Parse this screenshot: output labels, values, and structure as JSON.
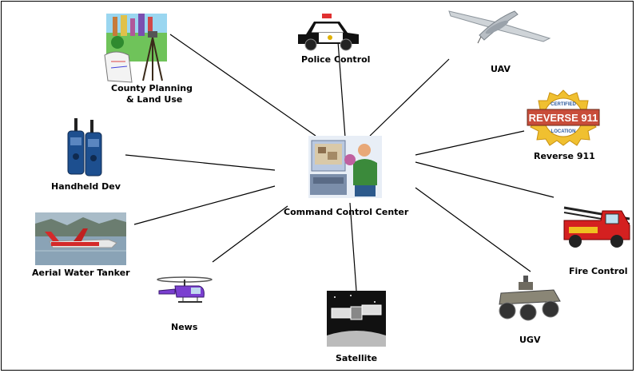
{
  "diagram": {
    "hub": {
      "label": "Command Control Center",
      "icon": "command-center-icon"
    },
    "nodes": [
      {
        "id": "county-planning",
        "label_line1": "County Planning",
        "label_line2": "& Land Use",
        "icon": "surveyor-icon"
      },
      {
        "id": "police-control",
        "label": "Police Control",
        "icon": "police-car-icon"
      },
      {
        "id": "uav",
        "label": "UAV",
        "icon": "drone-icon"
      },
      {
        "id": "reverse-911",
        "label": "Reverse 911",
        "badge_text": "REVERSE 911",
        "badge_top_text": "CERTIFIED",
        "badge_bottom_text": "LOCATION",
        "icon": "reverse-911-badge-icon"
      },
      {
        "id": "handheld-dev",
        "label": "Handheld Dev",
        "icon": "walkie-talkie-icon"
      },
      {
        "id": "fire-control",
        "label": "Fire Control",
        "icon": "fire-truck-icon"
      },
      {
        "id": "aerial-water-tanker",
        "label": "Aerial Water Tanker",
        "icon": "water-tanker-plane-icon"
      },
      {
        "id": "news",
        "label": "News",
        "icon": "helicopter-icon"
      },
      {
        "id": "satellite",
        "label": "Satellite",
        "icon": "satellite-icon"
      },
      {
        "id": "ugv",
        "label": "UGV",
        "icon": "ground-robot-icon"
      }
    ],
    "connections": [
      "county-planning",
      "police-control",
      "uav",
      "reverse-911",
      "handheld-dev",
      "fire-control",
      "aerial-water-tanker",
      "news",
      "satellite",
      "ugv"
    ],
    "colors": {
      "line": "#000000",
      "border": "#000000",
      "background": "#ffffff"
    }
  }
}
